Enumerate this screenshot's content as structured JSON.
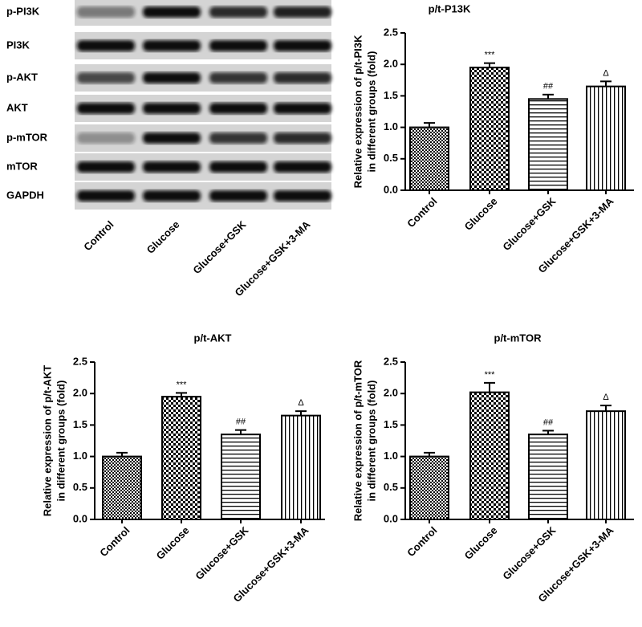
{
  "blot": {
    "rows": [
      "p-PI3K",
      "PI3K",
      "p-AKT",
      "AKT",
      "p-mTOR",
      "mTOR",
      "GAPDH"
    ],
    "columns": [
      "Control",
      "Glucose",
      "Glucose+GSK",
      "Glucose+GSK+3-MA"
    ]
  },
  "chart_data": [
    {
      "type": "bar",
      "title": "p/t-P13K",
      "ylabel": [
        "Relative expression of p/t-PI3K",
        "in different groups (fold)"
      ],
      "categories": [
        "Control",
        "Glucose",
        "Glucose+GSK",
        "Glucose+GSK+3-MA"
      ],
      "values": [
        1.0,
        1.95,
        1.45,
        1.65
      ],
      "errors": [
        0.07,
        0.07,
        0.07,
        0.08
      ],
      "annotations": [
        null,
        "***",
        "##",
        "Δ"
      ],
      "color": "#000000",
      "ylim": [
        0,
        2.5
      ],
      "yticks": [
        {
          "value": 0,
          "label": "0.0"
        },
        0.5,
        {
          "value": 1,
          "label": "1.0"
        },
        1.5,
        {
          "value": 2,
          "label": "2.0"
        },
        2.5
      ]
    },
    {
      "type": "bar",
      "title": "p/t-AKT",
      "ylabel": [
        "Relative expression of p/t-AKT",
        "in different groups (fold)"
      ],
      "categories": [
        "Control",
        "Glucose",
        "Glucose+GSK",
        "Glucose+GSK+3-MA"
      ],
      "values": [
        1.0,
        1.95,
        1.35,
        1.65
      ],
      "errors": [
        0.06,
        0.06,
        0.07,
        0.07
      ],
      "annotations": [
        null,
        "***",
        "##",
        "Δ"
      ],
      "color": "#000000",
      "ylim": [
        0,
        2.5
      ],
      "yticks": [
        {
          "value": 0,
          "label": "0.0"
        },
        0.5,
        {
          "value": 1,
          "label": "1.0"
        },
        1.5,
        {
          "value": 2,
          "label": "2.0"
        },
        2.5
      ]
    },
    {
      "type": "bar",
      "title": "p/t-mTOR",
      "ylabel": [
        "Relative expression of p/t-mTOR",
        "in different groups (fold)"
      ],
      "categories": [
        "Control",
        "Glucose",
        "Glucose+GSK",
        "Glucose+GSK+3-MA"
      ],
      "values": [
        1.0,
        2.02,
        1.35,
        1.72
      ],
      "errors": [
        0.06,
        0.15,
        0.06,
        0.09
      ],
      "annotations": [
        null,
        "***",
        "##",
        "Δ"
      ],
      "color": "#000000",
      "ylim": [
        0,
        2.5
      ],
      "yticks": [
        {
          "value": 0,
          "label": "0.0"
        },
        0.5,
        {
          "value": 1,
          "label": "1.0"
        },
        1.5,
        {
          "value": 2,
          "label": "2.0"
        },
        2.5
      ]
    }
  ]
}
